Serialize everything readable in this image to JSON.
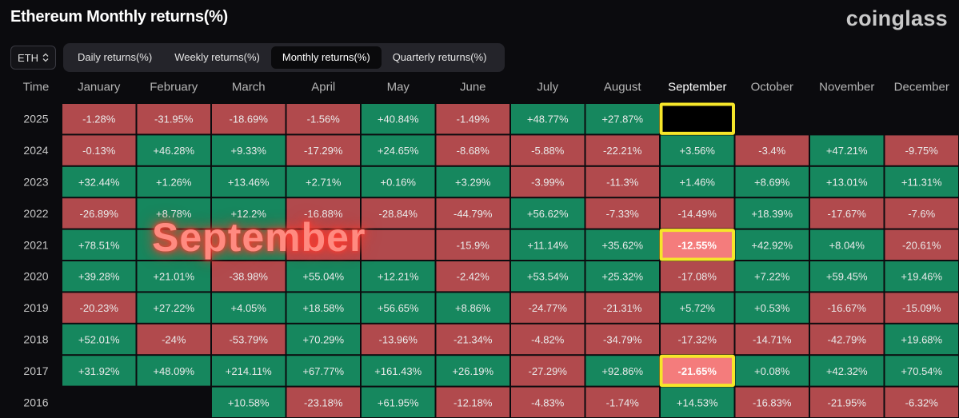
{
  "title": "Ethereum Monthly returns(%)",
  "brand": "coinglass",
  "coin_select": {
    "value": "ETH",
    "icon": "chevron-up-down-icon"
  },
  "tabs": [
    {
      "label": "Daily returns(%)",
      "active": false
    },
    {
      "label": "Weekly returns(%)",
      "active": false
    },
    {
      "label": "Monthly returns(%)",
      "active": true
    },
    {
      "label": "Quarterly returns(%)",
      "active": false
    }
  ],
  "overlay_text": "September",
  "colors": {
    "positive": "#16875e",
    "negative": "#b14a4d",
    "highlight_border": "#f6e62a",
    "highlight_fill": "#f47c7c",
    "empty_highlight_fill": "#000000"
  },
  "chart_data": {
    "type": "heatmap",
    "row_header": "Time",
    "columns": [
      "January",
      "February",
      "March",
      "April",
      "May",
      "June",
      "July",
      "August",
      "September",
      "October",
      "November",
      "December"
    ],
    "highlighted_column": "September",
    "rows": [
      {
        "year": "2025",
        "values": [
          "-1.28%",
          "-31.95%",
          "-18.69%",
          "-1.56%",
          "+40.84%",
          "-1.49%",
          "+48.77%",
          "+27.87%",
          "",
          "",
          "",
          ""
        ]
      },
      {
        "year": "2024",
        "values": [
          "-0.13%",
          "+46.28%",
          "+9.33%",
          "-17.29%",
          "+24.65%",
          "-8.68%",
          "-5.88%",
          "-22.21%",
          "+3.56%",
          "-3.4%",
          "+47.21%",
          "-9.75%"
        ]
      },
      {
        "year": "2023",
        "values": [
          "+32.44%",
          "+1.26%",
          "+13.46%",
          "+2.71%",
          "+0.16%",
          "+3.29%",
          "-3.99%",
          "-11.3%",
          "+1.46%",
          "+8.69%",
          "+13.01%",
          "+11.31%"
        ]
      },
      {
        "year": "2022",
        "values": [
          "-26.89%",
          "+8.78%",
          "+12.2%",
          "-16.88%",
          "-28.84%",
          "-44.79%",
          "+56.62%",
          "-7.33%",
          "-14.49%",
          "+18.39%",
          "-17.67%",
          "-7.6%"
        ]
      },
      {
        "year": "2021",
        "values": [
          "+78.51%",
          "",
          "",
          "",
          "",
          "-15.9%",
          "+11.14%",
          "+35.62%",
          "-12.55%",
          "+42.92%",
          "+8.04%",
          "-20.61%"
        ]
      },
      {
        "year": "2020",
        "values": [
          "+39.28%",
          "+21.01%",
          "-38.98%",
          "+55.04%",
          "+12.21%",
          "-2.42%",
          "+53.54%",
          "+25.32%",
          "-17.08%",
          "+7.22%",
          "+59.45%",
          "+19.46%"
        ]
      },
      {
        "year": "2019",
        "values": [
          "-20.23%",
          "+27.22%",
          "+4.05%",
          "+18.58%",
          "+56.65%",
          "+8.86%",
          "-24.77%",
          "-21.31%",
          "+5.72%",
          "+0.53%",
          "-16.67%",
          "-15.09%"
        ]
      },
      {
        "year": "2018",
        "values": [
          "+52.01%",
          "-24%",
          "-53.79%",
          "+70.29%",
          "-13.96%",
          "-21.34%",
          "-4.82%",
          "-34.79%",
          "-17.32%",
          "-14.71%",
          "-42.79%",
          "+19.68%"
        ]
      },
      {
        "year": "2017",
        "values": [
          "+31.92%",
          "+48.09%",
          "+214.11%",
          "+67.77%",
          "+161.43%",
          "+26.19%",
          "-27.29%",
          "+92.86%",
          "-21.65%",
          "+0.08%",
          "+42.32%",
          "+70.54%"
        ]
      },
      {
        "year": "2016",
        "values": [
          "",
          "",
          "+10.58%",
          "-23.18%",
          "+61.95%",
          "-12.18%",
          "-4.83%",
          "-1.74%",
          "+14.53%",
          "-16.83%",
          "-21.95%",
          "-6.32%"
        ]
      }
    ],
    "cell_signs": [
      [
        "neg",
        "neg",
        "neg",
        "neg",
        "pos",
        "neg",
        "pos",
        "pos",
        "empty",
        "none",
        "none",
        "none"
      ],
      [
        "neg",
        "pos",
        "pos",
        "neg",
        "pos",
        "neg",
        "neg",
        "neg",
        "pos",
        "neg",
        "pos",
        "neg"
      ],
      [
        "pos",
        "pos",
        "pos",
        "pos",
        "pos",
        "pos",
        "neg",
        "neg",
        "pos",
        "pos",
        "pos",
        "pos"
      ],
      [
        "neg",
        "pos",
        "pos",
        "neg",
        "neg",
        "neg",
        "pos",
        "neg",
        "neg",
        "pos",
        "neg",
        "neg"
      ],
      [
        "pos",
        "pos",
        "pos",
        "neg",
        "neg",
        "neg",
        "pos",
        "pos",
        "neg",
        "pos",
        "pos",
        "neg"
      ],
      [
        "pos",
        "pos",
        "neg",
        "pos",
        "pos",
        "neg",
        "pos",
        "pos",
        "neg",
        "pos",
        "pos",
        "pos"
      ],
      [
        "neg",
        "pos",
        "pos",
        "pos",
        "pos",
        "pos",
        "neg",
        "neg",
        "pos",
        "pos",
        "neg",
        "neg"
      ],
      [
        "pos",
        "neg",
        "neg",
        "pos",
        "neg",
        "neg",
        "neg",
        "neg",
        "neg",
        "neg",
        "neg",
        "pos"
      ],
      [
        "pos",
        "pos",
        "pos",
        "pos",
        "pos",
        "pos",
        "neg",
        "pos",
        "neg",
        "pos",
        "pos",
        "pos"
      ],
      [
        "none",
        "none",
        "pos",
        "neg",
        "pos",
        "neg",
        "neg",
        "neg",
        "pos",
        "neg",
        "neg",
        "neg"
      ]
    ],
    "highlighted_cells": [
      {
        "year": "2025",
        "month": "September"
      },
      {
        "year": "2021",
        "month": "September"
      },
      {
        "year": "2017",
        "month": "September"
      }
    ]
  }
}
